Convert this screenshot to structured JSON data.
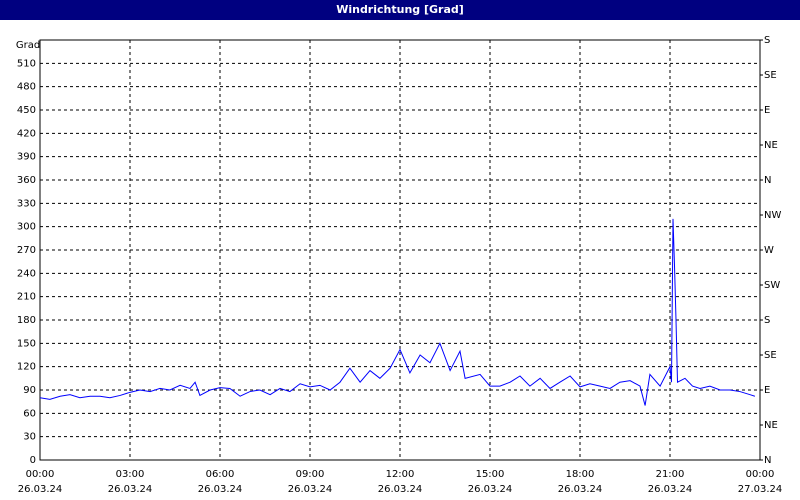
{
  "chart_data": {
    "type": "line",
    "title": "Windrichtung [Grad]",
    "ylabel": "Grad",
    "xlim": [
      0,
      24
    ],
    "xticks": [
      {
        "value": 0,
        "label": "00:00",
        "date": "26.03.24"
      },
      {
        "value": 3,
        "label": "03:00",
        "date": "26.03.24"
      },
      {
        "value": 6,
        "label": "06:00",
        "date": "26.03.24"
      },
      {
        "value": 9,
        "label": "09:00",
        "date": "26.03.24"
      },
      {
        "value": 12,
        "label": "12:00",
        "date": "26.03.24"
      },
      {
        "value": 15,
        "label": "15:00",
        "date": "26.03.24"
      },
      {
        "value": 18,
        "label": "18:00",
        "date": "26.03.24"
      },
      {
        "value": 21,
        "label": "21:00",
        "date": "26.03.24"
      },
      {
        "value": 24,
        "label": "00:00",
        "date": "27.03.24"
      }
    ],
    "ylim": [
      0,
      540
    ],
    "yticks": [
      0,
      30,
      60,
      90,
      120,
      150,
      180,
      210,
      240,
      270,
      300,
      330,
      360,
      390,
      420,
      450,
      480,
      510
    ],
    "y2lim": [
      0,
      540
    ],
    "y2ticks": [
      {
        "value": 0,
        "label": "N"
      },
      {
        "value": 45,
        "label": "NE"
      },
      {
        "value": 90,
        "label": "E"
      },
      {
        "value": 135,
        "label": "SE"
      },
      {
        "value": 180,
        "label": "S"
      },
      {
        "value": 225,
        "label": "SW"
      },
      {
        "value": 270,
        "label": "W"
      },
      {
        "value": 315,
        "label": "NW"
      },
      {
        "value": 360,
        "label": "N"
      },
      {
        "value": 405,
        "label": "NE"
      },
      {
        "value": 450,
        "label": "E"
      },
      {
        "value": 495,
        "label": "SE"
      },
      {
        "value": 540,
        "label": "S"
      }
    ],
    "grid": true,
    "x": [
      0,
      0.33,
      0.67,
      1,
      1.33,
      1.67,
      2,
      2.33,
      2.67,
      3,
      3.33,
      3.67,
      4,
      4.33,
      4.67,
      5,
      5.17,
      5.33,
      5.67,
      6,
      6.33,
      6.67,
      7,
      7.33,
      7.67,
      8,
      8.33,
      8.67,
      9,
      9.33,
      9.67,
      10,
      10.33,
      10.67,
      11,
      11.33,
      11.67,
      12,
      12.33,
      12.67,
      13,
      13.33,
      13.67,
      14,
      14.17,
      14.67,
      15,
      15.33,
      15.67,
      16,
      16.33,
      16.67,
      17,
      17.33,
      17.67,
      18,
      18.33,
      18.67,
      19,
      19.33,
      19.67,
      20,
      20.17,
      20.33,
      20.67,
      21,
      21.05,
      21.1,
      21.15,
      21.2,
      21.25,
      21.5,
      21.75,
      22,
      22.33,
      22.67,
      23,
      23.33,
      23.67,
      23.83
    ],
    "series": [
      {
        "name": "Windrichtung",
        "color": "#0000ff",
        "values": [
          80,
          78,
          82,
          84,
          80,
          82,
          82,
          80,
          83,
          87,
          90,
          88,
          92,
          90,
          96,
          92,
          100,
          83,
          90,
          93,
          92,
          82,
          88,
          90,
          84,
          92,
          88,
          98,
          94,
          96,
          90,
          100,
          118,
          100,
          115,
          105,
          118,
          142,
          112,
          135,
          125,
          150,
          115,
          140,
          105,
          110,
          95,
          95,
          100,
          108,
          95,
          105,
          92,
          100,
          108,
          94,
          98,
          95,
          92,
          100,
          102,
          95,
          70,
          110,
          95,
          120,
          100,
          310,
          250,
          180,
          100,
          105,
          95,
          92,
          95,
          90,
          90,
          88,
          84,
          82
        ]
      }
    ]
  }
}
